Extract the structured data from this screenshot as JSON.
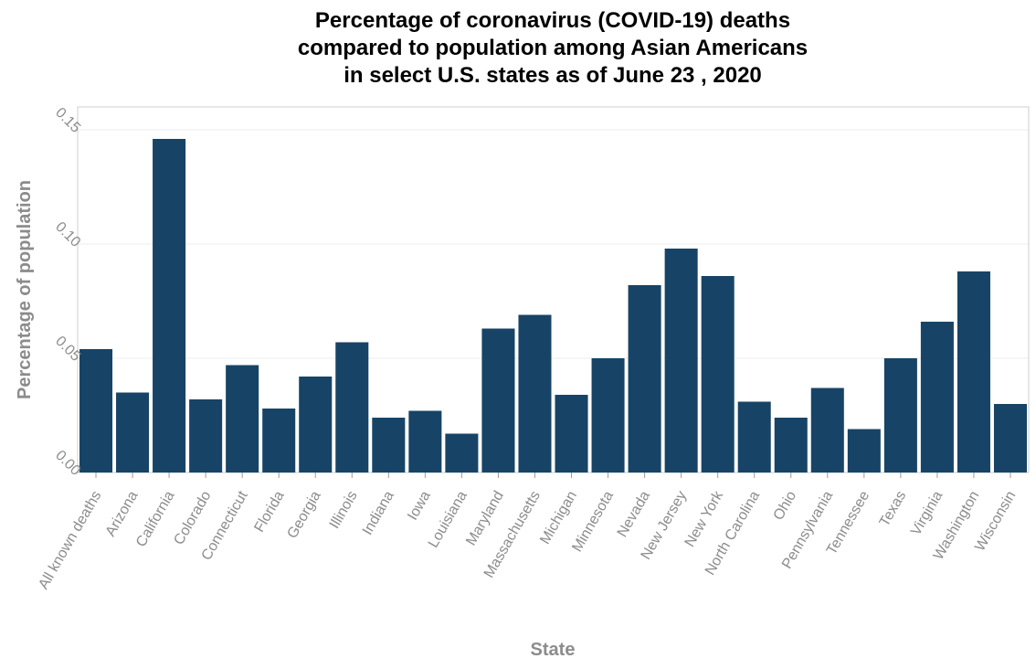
{
  "chart_data": {
    "type": "bar",
    "title_lines": [
      "Percentage of coronavirus (COVID-19) deaths",
      "compared to population among Asian Americans",
      "in select U.S. states as of June 23 , 2020"
    ],
    "xlabel": "State",
    "ylabel": "Percentage of population",
    "ylim": [
      0,
      0.16
    ],
    "yticks": [
      0,
      0.05,
      0.1,
      0.15
    ],
    "ytick_labels": [
      "0.00",
      "0.05",
      "0.10",
      "0.15"
    ],
    "grid": true,
    "bar_color": "#174466",
    "categories": [
      "All known deaths",
      "Arizona",
      "California",
      "Colorado",
      "Connecticut",
      "Florida",
      "Georgia",
      "Illinois",
      "Indiana",
      "Iowa",
      "Louisiana",
      "Maryland",
      "Massachusetts",
      "Michigan",
      "Minnesota",
      "Nevada",
      "New Jersey",
      "New York",
      "North Carolina",
      "Ohio",
      "Pennsylvania",
      "Tennessee",
      "Texas",
      "Virginia",
      "Washington",
      "Wisconsin"
    ],
    "values": [
      0.054,
      0.035,
      0.146,
      0.032,
      0.047,
      0.028,
      0.042,
      0.057,
      0.024,
      0.027,
      0.017,
      0.063,
      0.069,
      0.034,
      0.05,
      0.082,
      0.098,
      0.086,
      0.031,
      0.024,
      0.037,
      0.019,
      0.05,
      0.066,
      0.088,
      0.03
    ]
  }
}
